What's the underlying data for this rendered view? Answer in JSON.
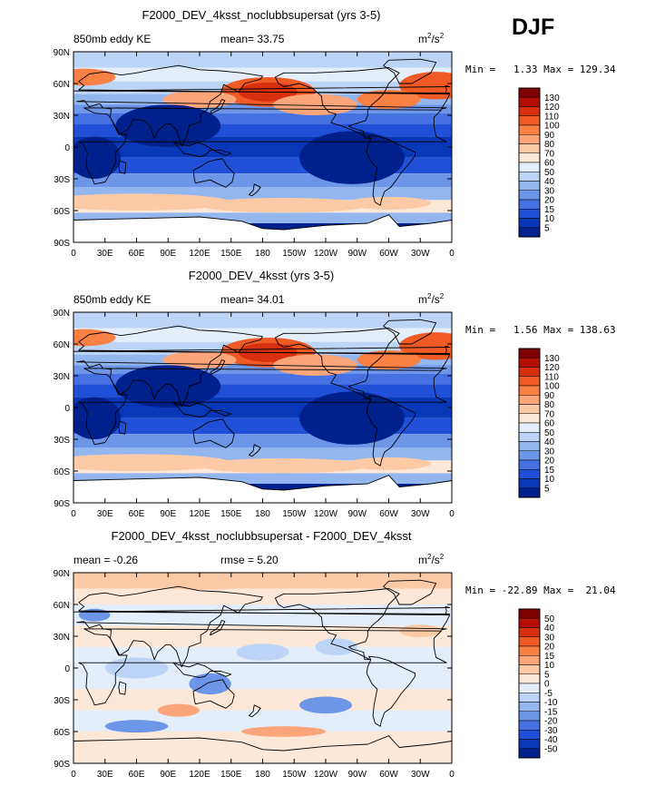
{
  "season": "DJF",
  "axes": {
    "lat_ticks": [
      "90N",
      "60N",
      "30N",
      "0",
      "30S",
      "60S",
      "90S"
    ],
    "lon_ticks": [
      "0",
      "30E",
      "60E",
      "90E",
      "120E",
      "150E",
      "180",
      "150W",
      "120W",
      "90W",
      "60W",
      "30W",
      "0"
    ]
  },
  "chart_data": [
    {
      "type": "heatmap",
      "title": "F2000_DEV_4ksst_noclubbsupersat (yrs 3-5)",
      "left_label": "850mb eddy KE",
      "center_label": "mean=  33.75",
      "units": "m2/s2",
      "units_base": "m",
      "units_exp": "2",
      "units_sep": "/s",
      "units_exp2": "2",
      "min_label": "Min =",
      "min": "1.33",
      "max_label": "Max =",
      "max": "129.34",
      "colorbar_labels": [
        "130",
        "120",
        "110",
        "100",
        "90",
        "80",
        "70",
        "60",
        "50",
        "40",
        "30",
        "20",
        "15",
        "10",
        "5"
      ],
      "colorbar_colors": [
        "#7f0000",
        "#b40f04",
        "#d8300e",
        "#ef5a25",
        "#fa8043",
        "#fca47a",
        "#fdcaa8",
        "#fde8d8",
        "#e4eefa",
        "#bcd4f5",
        "#93b6ee",
        "#6d96e8",
        "#4671e2",
        "#2150d8",
        "#0838b8",
        "#00208c"
      ]
    },
    {
      "type": "heatmap",
      "title": "F2000_DEV_4ksst (yrs 3-5)",
      "left_label": "850mb eddy KE",
      "center_label": "mean=  34.01",
      "units": "m2/s2",
      "units_base": "m",
      "units_exp": "2",
      "units_sep": "/s",
      "units_exp2": "2",
      "min_label": "Min =",
      "min": "1.56",
      "max_label": "Max =",
      "max": "138.63",
      "colorbar_labels": [
        "130",
        "120",
        "110",
        "100",
        "90",
        "80",
        "70",
        "60",
        "50",
        "40",
        "30",
        "20",
        "15",
        "10",
        "5"
      ],
      "colorbar_colors": [
        "#7f0000",
        "#b40f04",
        "#d8300e",
        "#ef5a25",
        "#fa8043",
        "#fca47a",
        "#fdcaa8",
        "#fde8d8",
        "#e4eefa",
        "#bcd4f5",
        "#93b6ee",
        "#6d96e8",
        "#4671e2",
        "#2150d8",
        "#0838b8",
        "#00208c"
      ]
    },
    {
      "type": "heatmap",
      "title": "F2000_DEV_4ksst_noclubbsupersat - F2000_DEV_4ksst",
      "left_label": "mean =  -0.26",
      "center_label": "rmse =   5.20",
      "units": "m2/s2",
      "units_base": "m",
      "units_exp": "2",
      "units_sep": "/s",
      "units_exp2": "2",
      "min_label": "Min =",
      "min": "-22.89",
      "max_label": "Max =",
      "max": "21.04",
      "colorbar_labels": [
        "50",
        "40",
        "30",
        "20",
        "15",
        "10",
        "5",
        "0",
        "-5",
        "-10",
        "-15",
        "-20",
        "-30",
        "-40",
        "-50"
      ],
      "colorbar_colors": [
        "#7f0000",
        "#b40f04",
        "#d8300e",
        "#ef5a25",
        "#fa8043",
        "#fca47a",
        "#fdcaa8",
        "#fde8d8",
        "#e4eefa",
        "#bcd4f5",
        "#93b6ee",
        "#6d96e8",
        "#4671e2",
        "#2150d8",
        "#0838b8",
        "#00208c"
      ]
    }
  ]
}
